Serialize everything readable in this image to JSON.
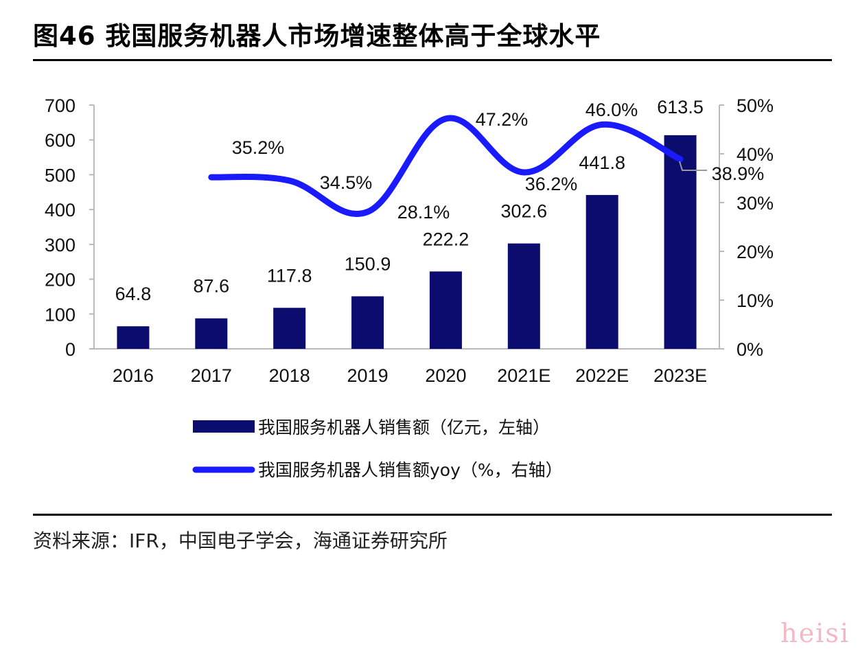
{
  "title": "图46 我国服务机器人市场增速整体高于全球水平",
  "source": "资料来源：IFR，中国电子学会，海通证券研究所",
  "watermark": "heisi",
  "chart_data": {
    "type": "bar+line",
    "categories": [
      "2016",
      "2017",
      "2018",
      "2019",
      "2020",
      "2021E",
      "2022E",
      "2023E"
    ],
    "series": [
      {
        "name": "我国服务机器人销售额（亿元，左轴）",
        "type": "bar",
        "axis": "left",
        "color": "#0c0c6e",
        "values": [
          64.8,
          87.6,
          117.8,
          150.9,
          222.2,
          302.6,
          441.8,
          613.5
        ],
        "labels": [
          "64.8",
          "87.6",
          "117.8",
          "150.9",
          "222.2",
          "302.6",
          "441.8",
          "613.5"
        ]
      },
      {
        "name": "我国服务机器人销售额yoy（%，右轴）",
        "type": "line",
        "axis": "right",
        "color": "#1a1aff",
        "values": [
          null,
          35.2,
          34.5,
          28.1,
          47.2,
          36.2,
          46.0,
          38.9
        ],
        "labels": [
          "",
          "35.2%",
          "34.5%",
          "28.1%",
          "47.2%",
          "36.2%",
          "46.0%",
          "38.9%"
        ]
      }
    ],
    "y_left": {
      "min": 0,
      "max": 700,
      "ticks": [
        "0",
        "100",
        "200",
        "300",
        "400",
        "500",
        "600",
        "700"
      ]
    },
    "y_right": {
      "min": 0,
      "max": 50,
      "ticks": [
        "0%",
        "10%",
        "20%",
        "30%",
        "40%",
        "50%"
      ]
    },
    "legend": "bottom",
    "grid": false
  }
}
